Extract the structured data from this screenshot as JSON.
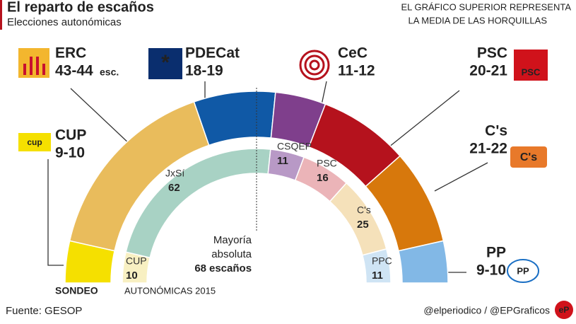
{
  "chart_data": {
    "type": "hemicycle",
    "title": "El reparto de escaños",
    "subtitle": "Elecciones autonómicas",
    "note": [
      "EL GRÁFICO SUPERIOR REPRESENTA",
      "LA MEDIA DE LAS HORQUILLAS"
    ],
    "outer": {
      "label": "SONDEO",
      "unit": "esc.",
      "categories": [
        "CUP",
        "ERC",
        "PDECat",
        "CeC",
        "PSC",
        "C's",
        "PP"
      ],
      "values": [
        9.5,
        43.5,
        18.5,
        11.5,
        20.5,
        21.5,
        9.5
      ],
      "value_labels": [
        "9-10",
        "43-44",
        "18-19",
        "11-12",
        "20-21",
        "21-22",
        "9-10"
      ],
      "colors": [
        "#f5e000",
        "#e9bc5c",
        "#1059a6",
        "#7f3f8c",
        "#b5121d",
        "#d7780c",
        "#82b8e6"
      ]
    },
    "inner": {
      "label": "AUTONÓMICAS 2015",
      "categories": [
        "CUP",
        "JxSí",
        "CSQEP",
        "PSC",
        "C's",
        "PPC"
      ],
      "values": [
        10,
        62,
        11,
        16,
        25,
        11
      ],
      "colors": [
        "#f8f0c2",
        "#a8d2c4",
        "#b899c6",
        "#ebb4b8",
        "#f5e1ba",
        "#cfe4f4"
      ]
    },
    "majority_label": [
      "Mayoría",
      "absoluta"
    ],
    "majority": 68,
    "majority_unit": "escaños",
    "source": "Fuente: GESOP",
    "credit": "@elperiodico / @EPGraficos"
  }
}
